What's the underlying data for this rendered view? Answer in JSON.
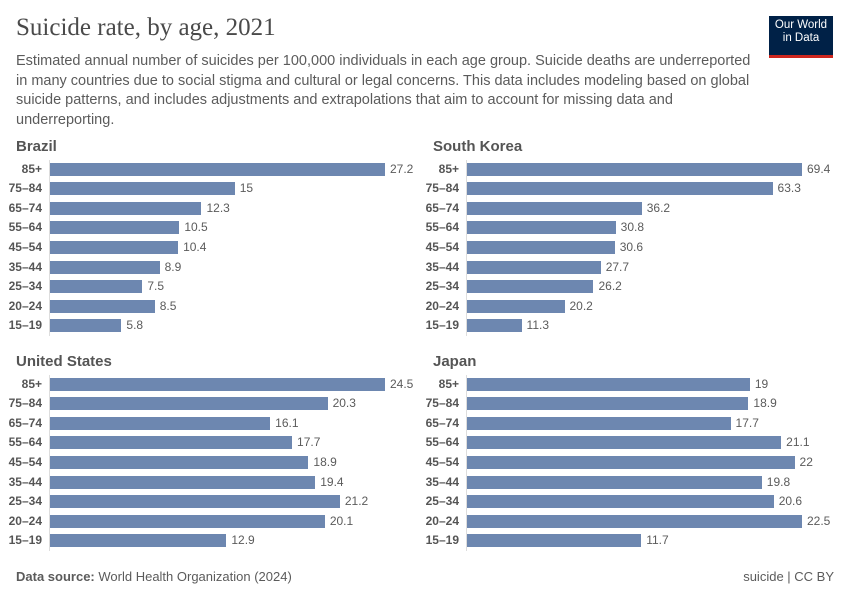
{
  "header": {
    "title": "Suicide rate, by age, 2021",
    "subtitle": "Estimated annual number of suicides per 100,000 individuals in each age group. Suicide deaths are underreported in many countries due to social stigma and cultural or legal concerns. This data includes modeling based on global suicide patterns, and includes adjustments and extrapolations that aim to account for missing data and underreporting.",
    "logo_line1": "Our World",
    "logo_line2": "in Data"
  },
  "footer": {
    "source_label": "Data source:",
    "source": "World Health Organization (2024)",
    "license": "suicide | CC BY"
  },
  "colors": {
    "bar": "#6d87b0",
    "logo_bg": "#002147",
    "logo_accent": "#ce261e"
  },
  "chart_data": [
    {
      "type": "bar",
      "orientation": "horizontal",
      "title": "Brazil",
      "categories": [
        "85+",
        "75–84",
        "65–74",
        "55–64",
        "45–54",
        "35–44",
        "25–34",
        "20–24",
        "15–19"
      ],
      "values": [
        27.2,
        15,
        12.3,
        10.5,
        10.4,
        8.9,
        7.5,
        8.5,
        5.8
      ]
    },
    {
      "type": "bar",
      "orientation": "horizontal",
      "title": "South Korea",
      "categories": [
        "85+",
        "75–84",
        "65–74",
        "55–64",
        "45–54",
        "35–44",
        "25–34",
        "20–24",
        "15–19"
      ],
      "values": [
        69.4,
        63.3,
        36.2,
        30.8,
        30.6,
        27.7,
        26.2,
        20.2,
        11.3
      ]
    },
    {
      "type": "bar",
      "orientation": "horizontal",
      "title": "United States",
      "categories": [
        "85+",
        "75–84",
        "65–74",
        "55–64",
        "45–54",
        "35–44",
        "25–34",
        "20–24",
        "15–19"
      ],
      "values": [
        24.5,
        20.3,
        16.1,
        17.7,
        18.9,
        19.4,
        21.2,
        20.1,
        12.9
      ]
    },
    {
      "type": "bar",
      "orientation": "horizontal",
      "title": "Japan",
      "categories": [
        "85+",
        "75–84",
        "65–74",
        "55–64",
        "45–54",
        "35–44",
        "25–34",
        "20–24",
        "15–19"
      ],
      "values": [
        19,
        18.9,
        17.7,
        21.1,
        22,
        19.8,
        20.6,
        22.5,
        11.7
      ]
    }
  ]
}
